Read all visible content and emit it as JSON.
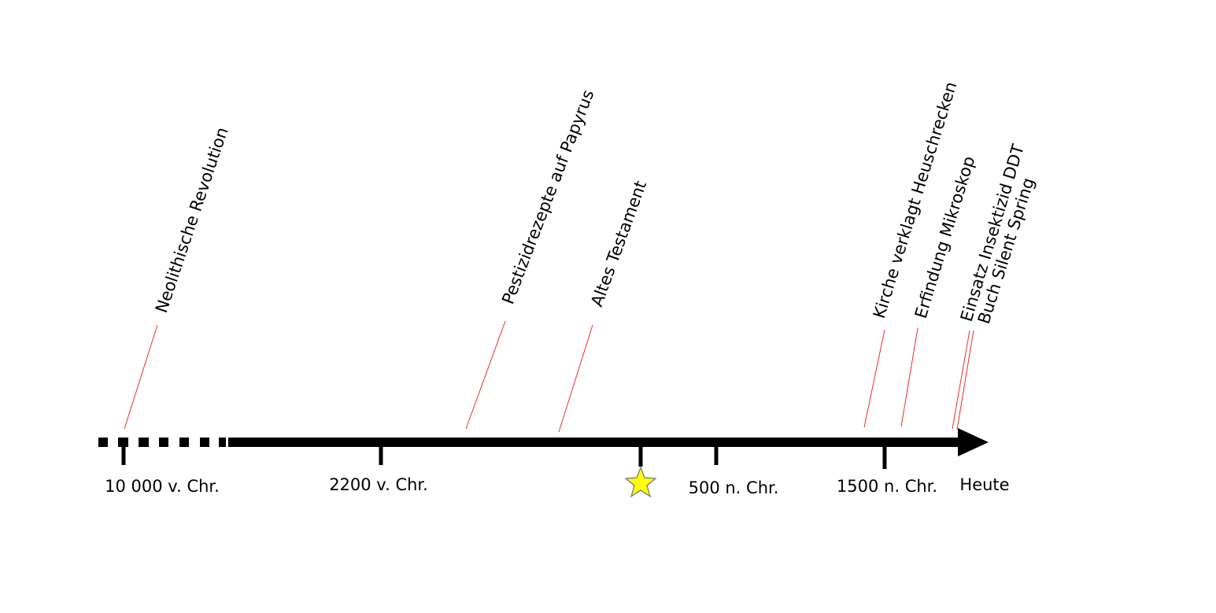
{
  "ticks": [
    "10 000 v. Chr.",
    "2200 v. Chr.",
    "500 n. Chr.",
    "1500 n. Chr.",
    "Heute"
  ],
  "events": [
    "Neolithische Revolution",
    "Pestizidrezepte auf Papyrus",
    "Altes Testament",
    "Kirche verklagt Heuschrecken",
    "Erfindung Mikroskop",
    "Einsatz Insektizid DDT",
    "Buch Silent Spring"
  ]
}
